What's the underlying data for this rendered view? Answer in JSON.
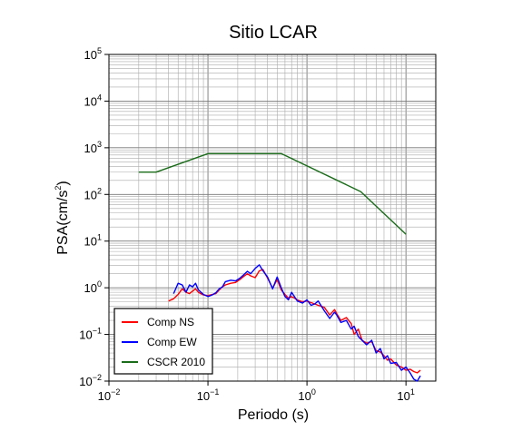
{
  "chart_data": {
    "type": "line",
    "title": "Sitio LCAR",
    "xlabel": "Periodo (s)",
    "ylabel_base": "PSA(cm/s",
    "ylabel_exp": "2",
    "ylabel_close": ")",
    "x_scale": "log",
    "y_scale": "log",
    "xlim": [
      0.01,
      20
    ],
    "ylim": [
      0.01,
      100000
    ],
    "grid": true,
    "legend_position": "bottom-left",
    "x_ticks": [
      {
        "value": 0.01,
        "base": "10",
        "exp": "−2"
      },
      {
        "value": 0.1,
        "base": "10",
        "exp": "−1"
      },
      {
        "value": 1,
        "base": "10",
        "exp": "0"
      },
      {
        "value": 10,
        "base": "10",
        "exp": "1"
      }
    ],
    "y_ticks": [
      {
        "value": 0.01,
        "base": "10",
        "exp": "−2"
      },
      {
        "value": 0.1,
        "base": "10",
        "exp": "−1"
      },
      {
        "value": 1,
        "base": "10",
        "exp": "0"
      },
      {
        "value": 10,
        "base": "10",
        "exp": "1"
      },
      {
        "value": 100,
        "base": "10",
        "exp": "2"
      },
      {
        "value": 1000,
        "base": "10",
        "exp": "3"
      },
      {
        "value": 10000,
        "base": "10",
        "exp": "4"
      },
      {
        "value": 100000,
        "base": "10",
        "exp": "5"
      }
    ],
    "series": [
      {
        "name": "Comp NS",
        "color": "#ff0000",
        "x": [
          0.04,
          0.045,
          0.05,
          0.055,
          0.06,
          0.065,
          0.07,
          0.075,
          0.08,
          0.09,
          0.1,
          0.11,
          0.12,
          0.13,
          0.14,
          0.15,
          0.17,
          0.19,
          0.21,
          0.23,
          0.25,
          0.27,
          0.3,
          0.33,
          0.36,
          0.4,
          0.45,
          0.5,
          0.55,
          0.6,
          0.65,
          0.7,
          0.8,
          0.9,
          1.0,
          1.1,
          1.2,
          1.3,
          1.5,
          1.7,
          1.9,
          2.0,
          2.2,
          2.5,
          2.8,
          3.0,
          3.3,
          3.6,
          4.0,
          4.5,
          5.0,
          5.5,
          6.0,
          6.5,
          7.0,
          8.0,
          9.0,
          10.0,
          11.0,
          12.0,
          13.0,
          14.0
        ],
        "y": [
          0.52,
          0.58,
          0.72,
          0.95,
          0.8,
          0.75,
          0.85,
          0.95,
          0.8,
          0.7,
          0.68,
          0.72,
          0.75,
          0.9,
          1.05,
          1.15,
          1.25,
          1.3,
          1.5,
          1.75,
          2.0,
          1.8,
          1.65,
          2.3,
          2.45,
          1.6,
          0.98,
          1.5,
          0.9,
          0.72,
          0.6,
          0.65,
          0.55,
          0.5,
          0.52,
          0.48,
          0.45,
          0.42,
          0.38,
          0.26,
          0.34,
          0.28,
          0.2,
          0.23,
          0.17,
          0.1,
          0.13,
          0.075,
          0.065,
          0.07,
          0.045,
          0.042,
          0.035,
          0.028,
          0.03,
          0.022,
          0.02,
          0.017,
          0.018,
          0.016,
          0.015,
          0.017
        ]
      },
      {
        "name": "Comp EW",
        "color": "#0000ff",
        "x": [
          0.045,
          0.05,
          0.055,
          0.06,
          0.065,
          0.07,
          0.075,
          0.08,
          0.09,
          0.1,
          0.11,
          0.12,
          0.13,
          0.14,
          0.15,
          0.17,
          0.19,
          0.21,
          0.23,
          0.25,
          0.27,
          0.3,
          0.33,
          0.36,
          0.4,
          0.45,
          0.5,
          0.55,
          0.6,
          0.65,
          0.7,
          0.8,
          0.9,
          1.0,
          1.1,
          1.2,
          1.3,
          1.5,
          1.7,
          1.9,
          2.0,
          2.2,
          2.5,
          2.8,
          3.0,
          3.3,
          3.6,
          4.0,
          4.5,
          5.0,
          5.5,
          6.0,
          6.5,
          7.0,
          8.0,
          9.0,
          10.0,
          11.0,
          12.0,
          13.0,
          14.0
        ],
        "y": [
          0.75,
          1.25,
          1.15,
          0.8,
          1.15,
          1.05,
          1.25,
          0.9,
          0.72,
          0.65,
          0.7,
          0.78,
          0.95,
          1.05,
          1.35,
          1.45,
          1.4,
          1.6,
          1.9,
          2.25,
          2.0,
          2.6,
          3.1,
          2.3,
          1.7,
          0.95,
          1.7,
          1.0,
          0.65,
          0.55,
          0.8,
          0.52,
          0.47,
          0.55,
          0.42,
          0.45,
          0.52,
          0.32,
          0.22,
          0.3,
          0.26,
          0.18,
          0.2,
          0.13,
          0.15,
          0.09,
          0.075,
          0.06,
          0.075,
          0.04,
          0.05,
          0.03,
          0.035,
          0.024,
          0.025,
          0.017,
          0.02,
          0.015,
          0.011,
          0.01,
          0.013
        ]
      },
      {
        "name": "CSCR 2010",
        "color": "#1a6b1a",
        "x": [
          0.02,
          0.03,
          0.1,
          0.55,
          3.5,
          10.0
        ],
        "y": [
          300,
          300,
          750,
          750,
          115,
          14
        ]
      }
    ]
  }
}
